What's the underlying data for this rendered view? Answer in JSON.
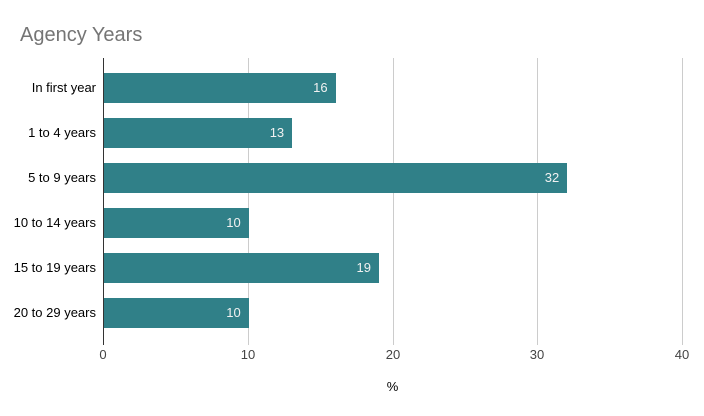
{
  "chart_data": {
    "type": "bar",
    "orientation": "horizontal",
    "title": "Agency Years",
    "categories": [
      "In first year",
      "1 to 4 years",
      "5 to 9 years",
      "10 to 14 years",
      "15 to 19 years",
      "20 to 29 years"
    ],
    "values": [
      16,
      13,
      32,
      10,
      19,
      10
    ],
    "value_labels": [
      "16",
      "13",
      "32",
      "10",
      "19",
      "10"
    ],
    "xlabel": "%",
    "xlim": [
      0,
      40
    ],
    "xticks": [
      0,
      10,
      20,
      30,
      40
    ],
    "xtick_labels": [
      "0",
      "10",
      "20",
      "30",
      "40"
    ],
    "grid": true,
    "legend": "none",
    "colors": {
      "bar": "#308088",
      "title_text": "#757575",
      "gridline": "#cccccc",
      "axis_line": "#333333",
      "tick_text": "#444444",
      "category_text": "#000000",
      "value_text": "#f1f1f1",
      "background": "#ffffff"
    }
  }
}
